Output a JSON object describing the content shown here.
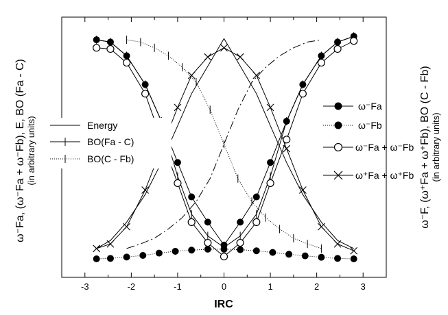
{
  "chart_data": {
    "type": "line",
    "xlabel": "IRC",
    "xlim": [
      -3.5,
      3.5
    ],
    "ylim": [
      0,
      1
    ],
    "xticks": [
      "-3",
      "-2",
      "-1",
      "0",
      "1",
      "2",
      "3"
    ],
    "left_ylabel": {
      "main": "ω⁻Fa, (ω⁻Fa + ω⁻Fb), E, BO (Fa - C)",
      "sub": "(in arbitrary units)"
    },
    "right_ylabel": {
      "main": "ω⁻F, (ω⁺Fa + ω⁺Fb), BO (C - Fb)",
      "sub": "(in arbitrary units)"
    },
    "legend_left": [
      "Energy",
      "BO(Fa - C)",
      "BO(C - Fb)"
    ],
    "legend_right": [
      "ω⁻Fa",
      "ω⁻Fb",
      "ω⁻Fa + ω⁻Fb",
      "ω⁺Fa + ω⁺Fb"
    ],
    "series": [
      {
        "name": "Energy",
        "style": "solid",
        "x": [
          -2.75,
          -2.45,
          -2.1,
          -1.7,
          -1.35,
          -1.0,
          -0.7,
          -0.35,
          0.0,
          0.35,
          0.7,
          1.0,
          1.35,
          1.7,
          2.1,
          2.45,
          2.8
        ],
        "y": [
          0.045,
          0.08,
          0.16,
          0.28,
          0.42,
          0.58,
          0.72,
          0.84,
          0.96,
          0.84,
          0.72,
          0.58,
          0.42,
          0.28,
          0.16,
          0.08,
          0.045
        ]
      },
      {
        "name": "BO(Fa - C)",
        "style": "solid-tick",
        "x": [
          -2.75,
          -2.45,
          -2.1,
          -1.7,
          -1.35,
          -1.0,
          -0.7,
          -0.35,
          0.0,
          0.35,
          0.7,
          1.0,
          1.35,
          1.7,
          2.1,
          2.45,
          2.8
        ],
        "y": [
          0.955,
          0.945,
          0.885,
          0.76,
          0.6,
          0.36,
          0.195,
          0.1,
          0.05,
          0.1,
          0.195,
          0.36,
          0.6,
          0.76,
          0.885,
          0.945,
          0.97
        ]
      },
      {
        "name": "BO(C - Fb)",
        "style": "dotted-tick",
        "x": [
          -2.1,
          -1.8,
          -1.5,
          -1.2,
          -0.9,
          -0.6,
          -0.3,
          0.0,
          0.3,
          0.6,
          0.9,
          1.2,
          1.5,
          1.8,
          2.1
        ],
        "y": [
          0.955,
          0.945,
          0.92,
          0.885,
          0.835,
          0.77,
          0.65,
          0.5,
          0.35,
          0.25,
          0.18,
          0.13,
          0.09,
          0.065,
          0.045
        ]
      },
      {
        "name": "ω⁻Fa",
        "style": "filled-circle",
        "x": [
          -2.75,
          -2.45,
          -2.1,
          -1.7,
          -1.35,
          -1.0,
          -0.7,
          -0.35,
          0.0,
          0.35,
          0.7,
          1.0,
          1.35,
          1.7,
          2.1,
          2.45,
          2.8
        ],
        "y": [
          0.955,
          0.945,
          0.885,
          0.76,
          0.6,
          0.42,
          0.27,
          0.16,
          0.06,
          0.16,
          0.27,
          0.42,
          0.6,
          0.76,
          0.885,
          0.945,
          0.97
        ]
      },
      {
        "name": "ω⁻Fb",
        "style": "filled-circle-dotted",
        "x": [
          -2.75,
          -2.45,
          -2.1,
          -1.75,
          -1.4,
          -1.05,
          -0.7,
          -0.35,
          0.0,
          0.35,
          0.7,
          1.05,
          1.4,
          1.75,
          2.1,
          2.45,
          2.8
        ],
        "y": [
          0.0,
          0.002,
          0.008,
          0.015,
          0.025,
          0.033,
          0.038,
          0.042,
          0.042,
          0.04,
          0.035,
          0.028,
          0.02,
          0.013,
          0.007,
          0.002,
          0.0
        ]
      },
      {
        "name": "ω⁻Fa + ω⁻Fb",
        "style": "open-circle",
        "x": [
          -2.75,
          -2.45,
          -2.1,
          -1.7,
          -1.35,
          -1.0,
          -0.7,
          -0.35,
          0.0,
          0.35,
          0.7,
          1.0,
          1.35,
          1.7,
          2.1,
          2.45,
          2.8
        ],
        "y": [
          0.92,
          0.915,
          0.855,
          0.72,
          0.52,
          0.33,
          0.16,
          0.07,
          0.01,
          0.07,
          0.16,
          0.33,
          0.52,
          0.72,
          0.855,
          0.915,
          0.95
        ]
      },
      {
        "name": "ω⁺Fa + ω⁺Fb",
        "style": "cross",
        "x": [
          -2.75,
          -2.45,
          -2.1,
          -1.7,
          -1.35,
          -1.0,
          -0.7,
          -0.35,
          0.0,
          0.35,
          0.7,
          1.0,
          1.35,
          1.7,
          2.1,
          2.45,
          2.8
        ],
        "y": [
          0.045,
          0.065,
          0.14,
          0.3,
          0.48,
          0.66,
          0.8,
          0.88,
          0.92,
          0.88,
          0.8,
          0.66,
          0.48,
          0.3,
          0.14,
          0.065,
          0.035
        ]
      },
      {
        "name": "mirror",
        "style": "dashdot",
        "x": [
          -2.1,
          -1.8,
          -1.5,
          -1.2,
          -0.9,
          -0.6,
          -0.3,
          0.0,
          0.3,
          0.6,
          0.9,
          1.2,
          1.5,
          1.8,
          2.1
        ],
        "y": [
          0.045,
          0.065,
          0.09,
          0.13,
          0.18,
          0.25,
          0.35,
          0.5,
          0.65,
          0.77,
          0.835,
          0.885,
          0.92,
          0.945,
          0.955
        ]
      }
    ]
  }
}
